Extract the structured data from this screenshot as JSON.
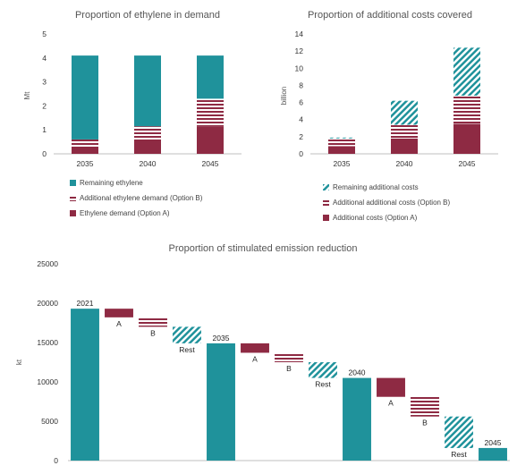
{
  "colors": {
    "teal": "#1f929b",
    "maroon": "#8e2a43",
    "axis": "#bfbfbf",
    "grid": "#e0e0e0"
  },
  "chart_data": [
    {
      "type": "bar",
      "stacked": true,
      "title": "Proportion of ethylene  in demand",
      "ylabel": "Mt",
      "ylim": [
        0,
        5
      ],
      "yticks": [
        "0",
        "1",
        "2",
        "3",
        "4",
        "5"
      ],
      "categories": [
        "2035",
        "2040",
        "2045"
      ],
      "series": [
        {
          "name": "Ethylene demand (Option A)",
          "values": [
            0.3,
            0.6,
            1.15
          ],
          "color": "#8e2a43",
          "pattern": "solid"
        },
        {
          "name": "Additional ethylene demand (Option B)",
          "values": [
            0.3,
            0.55,
            1.15
          ],
          "color": "#8e2a43",
          "pattern": "horizontal-stripes"
        },
        {
          "name": "Remaining ethylene",
          "values": [
            3.5,
            2.95,
            1.8
          ],
          "color": "#1f929b",
          "pattern": "solid"
        }
      ],
      "legend": "bottom"
    },
    {
      "type": "bar",
      "stacked": true,
      "title": "Proportion of additional costs covered",
      "ylabel": "billion",
      "ylim": [
        0,
        14
      ],
      "yticks": [
        "0",
        "2",
        "4",
        "6",
        "8",
        "10",
        "12",
        "14"
      ],
      "categories": [
        "2035",
        "2040",
        "2045"
      ],
      "series": [
        {
          "name": "Additional costs (Option A)",
          "values": [
            0.9,
            1.8,
            3.5
          ],
          "color": "#8e2a43",
          "pattern": "solid"
        },
        {
          "name": "Additional additional costs (Option B)",
          "values": [
            0.9,
            1.6,
            3.3
          ],
          "color": "#8e2a43",
          "pattern": "horizontal-stripes"
        },
        {
          "name": "Remaining additional costs",
          "values": [
            0.1,
            2.8,
            5.6
          ],
          "color": "#1f929b",
          "pattern": "diagonal-stripes"
        }
      ],
      "legend": "bottom"
    },
    {
      "type": "bar",
      "subtype": "waterfall",
      "title": "Proportion of stimulated emission reduction",
      "ylabel": "kt",
      "ylim": [
        0,
        25000
      ],
      "yticks": [
        "0",
        "5000",
        "10000",
        "15000",
        "20000",
        "25000"
      ],
      "steps": [
        {
          "label": "2021",
          "kind": "total",
          "from": 0,
          "to": 19300
        },
        {
          "label": "A",
          "kind": "decrease-A",
          "from": 19300,
          "to": 18200
        },
        {
          "label": "B",
          "kind": "decrease-B",
          "from": 18200,
          "to": 17000
        },
        {
          "label": "Rest",
          "kind": "decrease-rest",
          "from": 17000,
          "to": 14900
        },
        {
          "label": "2035",
          "kind": "total",
          "from": 0,
          "to": 14900
        },
        {
          "label": "A",
          "kind": "decrease-A",
          "from": 14900,
          "to": 13700
        },
        {
          "label": "B",
          "kind": "decrease-B",
          "from": 13700,
          "to": 12500
        },
        {
          "label": "Rest",
          "kind": "decrease-rest",
          "from": 12500,
          "to": 10500
        },
        {
          "label": "2040",
          "kind": "total",
          "from": 0,
          "to": 10500
        },
        {
          "label": "A",
          "kind": "decrease-A",
          "from": 10500,
          "to": 8100
        },
        {
          "label": "B",
          "kind": "decrease-B",
          "from": 8100,
          "to": 5600
        },
        {
          "label": "Rest",
          "kind": "decrease-rest",
          "from": 5600,
          "to": 1600
        },
        {
          "label": "2045",
          "kind": "total",
          "from": 0,
          "to": 1600
        }
      ]
    }
  ]
}
